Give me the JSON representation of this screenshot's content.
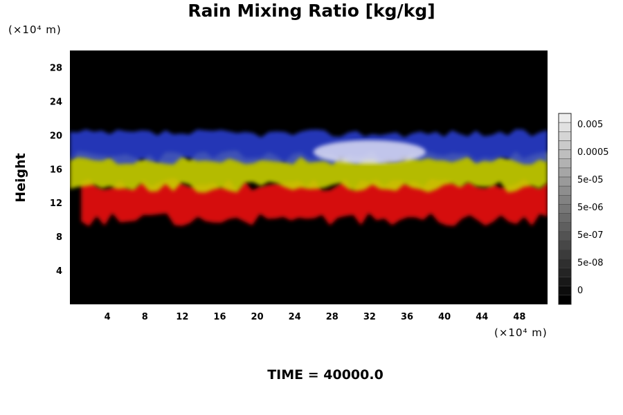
{
  "chart_data": {
    "type": "heatmap",
    "title": "Rain Mixing Ratio [kg/kg]",
    "xlabel": "",
    "ylabel": "Height",
    "x_unit_label": "(×10⁴ m)",
    "y_unit_label": "(×10⁴ m)",
    "xlim": [
      0,
      51
    ],
    "ylim": [
      0,
      30
    ],
    "x_ticks": [
      4,
      8,
      12,
      16,
      20,
      24,
      28,
      32,
      36,
      40,
      44,
      48
    ],
    "y_ticks": [
      4,
      8,
      12,
      16,
      20,
      24,
      28
    ],
    "colorbar": {
      "tick_labels": [
        "0.005",
        "0.0005",
        "5e-05",
        "5e-06",
        "5e-07",
        "5e-08",
        "0"
      ],
      "levels": 21
    },
    "layers": [
      {
        "name": "blue",
        "color": "#2a3fd6",
        "bottom": 17.0,
        "top": 20.2
      },
      {
        "name": "yellow",
        "color": "#c8cf00",
        "bottom": 13.8,
        "top": 17.5
      },
      {
        "name": "red",
        "color": "#e01010",
        "bottom": 10.0,
        "top": 14.2
      },
      {
        "name": "white",
        "color": "#e8e8f8",
        "bottom": 17.0,
        "top": 19.8
      }
    ],
    "background": "#000000",
    "annotation": "TIME = 40000.0"
  }
}
